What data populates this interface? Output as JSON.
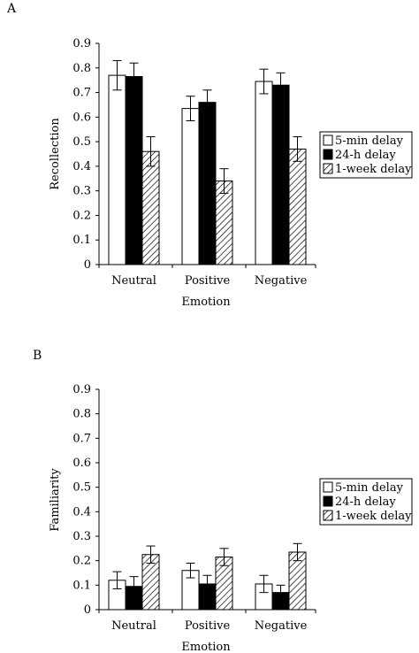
{
  "chart_data": [
    {
      "panel_label": "A",
      "type": "bar",
      "categories": [
        "Neutral",
        "Positive",
        "Negative"
      ],
      "series": [
        {
          "name": "5-min delay",
          "values": [
            0.77,
            0.635,
            0.745
          ],
          "errors": [
            0.06,
            0.05,
            0.05
          ]
        },
        {
          "name": "24-h delay",
          "values": [
            0.765,
            0.66,
            0.73
          ],
          "errors": [
            0.055,
            0.05,
            0.05
          ]
        },
        {
          "name": "1-week delay",
          "values": [
            0.46,
            0.34,
            0.47
          ],
          "errors": [
            0.06,
            0.05,
            0.05
          ]
        }
      ],
      "xlabel": "Emotion",
      "ylabel": "Recollection",
      "ylim": [
        0,
        0.9
      ],
      "yticks": [
        "0",
        "0.1",
        "0.2",
        "0.3",
        "0.4",
        "0.5",
        "0.6",
        "0.7",
        "0.8",
        "0.9"
      ],
      "legend_position": "right",
      "grid": false
    },
    {
      "panel_label": "B",
      "type": "bar",
      "categories": [
        "Neutral",
        "Positive",
        "Negative"
      ],
      "series": [
        {
          "name": "5-min delay",
          "values": [
            0.12,
            0.16,
            0.105
          ],
          "errors": [
            0.035,
            0.03,
            0.035
          ]
        },
        {
          "name": "24-h delay",
          "values": [
            0.095,
            0.105,
            0.07
          ],
          "errors": [
            0.04,
            0.035,
            0.03
          ]
        },
        {
          "name": "1-week delay",
          "values": [
            0.225,
            0.215,
            0.235
          ],
          "errors": [
            0.035,
            0.035,
            0.035
          ]
        }
      ],
      "xlabel": "Emotion",
      "ylabel": "Familiarity",
      "ylim": [
        0,
        0.9
      ],
      "yticks": [
        "0",
        "0.1",
        "0.2",
        "0.3",
        "0.4",
        "0.5",
        "0.6",
        "0.7",
        "0.8",
        "0.9"
      ],
      "legend_position": "right",
      "grid": false
    }
  ]
}
